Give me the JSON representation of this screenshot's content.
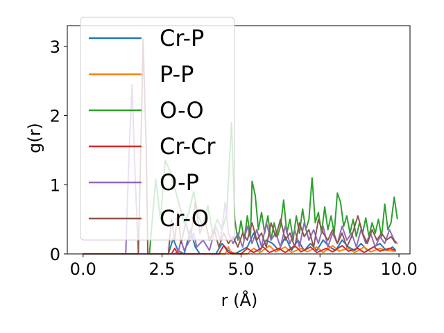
{
  "chart_data": {
    "type": "line",
    "title": "",
    "xlabel": "r (Å)",
    "ylabel": "g(r)",
    "xlim": [
      -0.5,
      10.35
    ],
    "ylim": [
      0,
      3.3
    ],
    "xticks": [
      0.0,
      2.5,
      5.0,
      7.5,
      10.0
    ],
    "xtick_labels": [
      "0.0",
      "2.5",
      "5.0",
      "7.5",
      "10.0"
    ],
    "yticks": [
      0,
      1,
      2,
      3
    ],
    "ytick_labels": [
      "0",
      "1",
      "2",
      "3"
    ],
    "grid": false,
    "legend_position": "top-left",
    "series": [
      {
        "name": "Cr-P",
        "color": "#1f77b4",
        "points": [
          [
            0,
            0
          ],
          [
            2.7,
            0
          ],
          [
            2.85,
            0.22
          ],
          [
            3.0,
            0.05
          ],
          [
            3.2,
            0
          ],
          [
            3.4,
            0.35
          ],
          [
            3.55,
            0.1
          ],
          [
            3.7,
            0
          ],
          [
            4.2,
            0
          ],
          [
            4.4,
            0.15
          ],
          [
            4.6,
            0.05
          ],
          [
            4.8,
            0
          ],
          [
            5.2,
            0.1
          ],
          [
            5.4,
            0.3
          ],
          [
            5.6,
            0.05
          ],
          [
            5.8,
            0.2
          ],
          [
            6.0,
            0.15
          ],
          [
            6.2,
            0.05
          ],
          [
            6.4,
            0.25
          ],
          [
            6.6,
            0.05
          ],
          [
            6.8,
            0.2
          ],
          [
            7.0,
            0.05
          ],
          [
            7.2,
            0.15
          ],
          [
            7.4,
            0.05
          ],
          [
            7.6,
            0.2
          ],
          [
            7.8,
            0.1
          ],
          [
            8.0,
            0.05
          ],
          [
            8.2,
            0.2
          ],
          [
            8.4,
            0.1
          ],
          [
            8.6,
            0.05
          ],
          [
            8.8,
            0.15
          ],
          [
            9.0,
            0.05
          ],
          [
            9.2,
            0.1
          ],
          [
            9.4,
            0.15
          ],
          [
            9.6,
            0.05
          ],
          [
            9.8,
            0.1
          ],
          [
            9.9,
            0.05
          ]
        ]
      },
      {
        "name": "P-P",
        "color": "#ff7f0e",
        "points": [
          [
            0,
            0
          ],
          [
            2.9,
            0
          ],
          [
            3.0,
            0.05
          ],
          [
            3.1,
            0
          ],
          [
            4.5,
            0
          ],
          [
            4.6,
            0.1
          ],
          [
            4.7,
            0
          ],
          [
            5.2,
            0
          ],
          [
            5.4,
            0.08
          ],
          [
            5.6,
            0.02
          ],
          [
            5.9,
            0.12
          ],
          [
            6.1,
            0.03
          ],
          [
            6.4,
            0.1
          ],
          [
            6.6,
            0.02
          ],
          [
            6.9,
            0.08
          ],
          [
            7.1,
            0.03
          ],
          [
            7.4,
            0.1
          ],
          [
            7.6,
            0.02
          ],
          [
            7.9,
            0.12
          ],
          [
            8.1,
            0.04
          ],
          [
            8.4,
            0.08
          ],
          [
            8.6,
            0.02
          ],
          [
            8.9,
            0.1
          ],
          [
            9.1,
            0.03
          ],
          [
            9.4,
            0.08
          ],
          [
            9.6,
            0.05
          ],
          [
            9.9,
            0.04
          ]
        ]
      },
      {
        "name": "O-O",
        "color": "#2ca02c",
        "points": [
          [
            0,
            0
          ],
          [
            2.1,
            0
          ],
          [
            2.3,
            1.08
          ],
          [
            2.45,
            0.5
          ],
          [
            2.6,
            1.35
          ],
          [
            2.75,
            1.2
          ],
          [
            2.9,
            0.95
          ],
          [
            3.05,
            0.7
          ],
          [
            3.2,
            0.45
          ],
          [
            3.35,
            0.6
          ],
          [
            3.5,
            0.9
          ],
          [
            3.65,
            0.55
          ],
          [
            3.8,
            0.4
          ],
          [
            3.95,
            0.7
          ],
          [
            4.1,
            0.3
          ],
          [
            4.25,
            0.5
          ],
          [
            4.4,
            0.35
          ],
          [
            4.55,
            0.6
          ],
          [
            4.7,
            1.9
          ],
          [
            4.8,
            0.5
          ],
          [
            4.9,
            0.2
          ],
          [
            5.0,
            0.48
          ],
          [
            5.1,
            0.2
          ],
          [
            5.2,
            0.55
          ],
          [
            5.3,
            0.25
          ],
          [
            5.35,
            1.05
          ],
          [
            5.45,
            0.85
          ],
          [
            5.55,
            0.35
          ],
          [
            5.65,
            0.6
          ],
          [
            5.75,
            0.3
          ],
          [
            5.85,
            0.55
          ],
          [
            5.95,
            0.2
          ],
          [
            6.05,
            0.45
          ],
          [
            6.15,
            0.25
          ],
          [
            6.25,
            0.4
          ],
          [
            6.35,
            0.78
          ],
          [
            6.45,
            0.3
          ],
          [
            6.55,
            0.5
          ],
          [
            6.65,
            0.2
          ],
          [
            6.75,
            0.55
          ],
          [
            6.85,
            0.3
          ],
          [
            6.95,
            0.65
          ],
          [
            7.05,
            0.35
          ],
          [
            7.15,
            0.5
          ],
          [
            7.25,
            1.1
          ],
          [
            7.35,
            0.45
          ],
          [
            7.45,
            0.6
          ],
          [
            7.55,
            0.3
          ],
          [
            7.65,
            0.68
          ],
          [
            7.75,
            0.35
          ],
          [
            7.85,
            0.55
          ],
          [
            7.95,
            0.3
          ],
          [
            8.05,
            0.88
          ],
          [
            8.15,
            0.75
          ],
          [
            8.25,
            0.4
          ],
          [
            8.35,
            0.55
          ],
          [
            8.45,
            0.3
          ],
          [
            8.55,
            0.5
          ],
          [
            8.65,
            0.25
          ],
          [
            8.75,
            0.45
          ],
          [
            8.85,
            0.3
          ],
          [
            8.95,
            0.52
          ],
          [
            9.05,
            0.25
          ],
          [
            9.15,
            0.45
          ],
          [
            9.25,
            0.3
          ],
          [
            9.35,
            0.5
          ],
          [
            9.45,
            0.25
          ],
          [
            9.55,
            0.72
          ],
          [
            9.65,
            0.35
          ],
          [
            9.75,
            0.45
          ],
          [
            9.85,
            0.82
          ],
          [
            9.95,
            0.5
          ]
        ]
      },
      {
        "name": "Cr-Cr",
        "color": "#d62728",
        "points": [
          [
            0,
            0
          ],
          [
            2.8,
            0
          ],
          [
            2.9,
            0.08
          ],
          [
            3.0,
            0
          ],
          [
            4.3,
            0
          ],
          [
            4.45,
            0.12
          ],
          [
            4.6,
            0.02
          ],
          [
            5.0,
            0
          ],
          [
            5.2,
            0.08
          ],
          [
            5.4,
            0.02
          ],
          [
            5.7,
            0.1
          ],
          [
            5.9,
            0.02
          ],
          [
            6.2,
            0.08
          ],
          [
            6.4,
            0.02
          ],
          [
            6.7,
            0.12
          ],
          [
            6.9,
            0.03
          ],
          [
            7.2,
            0.1
          ],
          [
            7.4,
            0.02
          ],
          [
            7.7,
            0.08
          ],
          [
            7.9,
            0.03
          ],
          [
            8.2,
            0.12
          ],
          [
            8.4,
            0.04
          ],
          [
            8.7,
            0.08
          ],
          [
            8.9,
            0.02
          ],
          [
            9.2,
            0.1
          ],
          [
            9.4,
            0.04
          ],
          [
            9.7,
            0.08
          ],
          [
            9.9,
            0.05
          ]
        ]
      },
      {
        "name": "O-P",
        "color": "#9467bd",
        "points": [
          [
            0,
            0
          ],
          [
            1.35,
            0
          ],
          [
            1.45,
            1.4
          ],
          [
            1.55,
            2.45
          ],
          [
            1.65,
            1.1
          ],
          [
            1.75,
            0
          ],
          [
            3.0,
            0
          ],
          [
            3.1,
            0.2
          ],
          [
            3.2,
            0.05
          ],
          [
            3.5,
            0.3
          ],
          [
            3.6,
            0.1
          ],
          [
            3.8,
            0.2
          ],
          [
            4.0,
            0.05
          ],
          [
            4.2,
            0.4
          ],
          [
            4.35,
            0.2
          ],
          [
            4.5,
            0.75
          ],
          [
            4.6,
            0.3
          ],
          [
            4.75,
            0.15
          ],
          [
            4.9,
            0.3
          ],
          [
            5.05,
            0.1
          ],
          [
            5.2,
            0.4
          ],
          [
            5.35,
            0.15
          ],
          [
            5.5,
            0.35
          ],
          [
            5.65,
            0.1
          ],
          [
            5.8,
            0.45
          ],
          [
            5.95,
            0.2
          ],
          [
            6.1,
            0.3
          ],
          [
            6.25,
            0.1
          ],
          [
            6.4,
            0.4
          ],
          [
            6.55,
            0.15
          ],
          [
            6.7,
            0.35
          ],
          [
            6.85,
            0.1
          ],
          [
            7.0,
            0.45
          ],
          [
            7.15,
            0.2
          ],
          [
            7.3,
            0.35
          ],
          [
            7.45,
            0.15
          ],
          [
            7.6,
            0.4
          ],
          [
            7.75,
            0.1
          ],
          [
            7.9,
            0.3
          ],
          [
            8.05,
            0.15
          ],
          [
            8.2,
            0.4
          ],
          [
            8.35,
            0.2
          ],
          [
            8.5,
            0.3
          ],
          [
            8.65,
            0.1
          ],
          [
            8.8,
            0.35
          ],
          [
            8.95,
            0.15
          ],
          [
            9.1,
            0.3
          ],
          [
            9.25,
            0.1
          ],
          [
            9.4,
            0.25
          ],
          [
            9.55,
            0.15
          ],
          [
            9.7,
            0.35
          ],
          [
            9.85,
            0.2
          ],
          [
            9.95,
            0.15
          ]
        ]
      },
      {
        "name": "Cr-O",
        "color": "#8c564b",
        "points": [
          [
            0,
            0
          ],
          [
            1.75,
            0
          ],
          [
            1.85,
            2.0
          ],
          [
            1.9,
            3.1
          ],
          [
            2.0,
            1.5
          ],
          [
            2.05,
            0
          ],
          [
            2.7,
            0
          ],
          [
            2.8,
            0.5
          ],
          [
            2.9,
            0.2
          ],
          [
            3.0,
            0.6
          ],
          [
            3.1,
            0.15
          ],
          [
            3.25,
            0.45
          ],
          [
            3.4,
            0.2
          ],
          [
            3.55,
            0.75
          ],
          [
            3.7,
            0.3
          ],
          [
            3.85,
            0.5
          ],
          [
            4.0,
            0.2
          ],
          [
            4.15,
            0.35
          ],
          [
            4.3,
            0.1
          ],
          [
            4.45,
            0.3
          ],
          [
            4.6,
            0.15
          ],
          [
            4.75,
            0.25
          ],
          [
            4.9,
            0.1
          ],
          [
            5.05,
            0.3
          ],
          [
            5.2,
            0.2
          ],
          [
            5.35,
            0.45
          ],
          [
            5.5,
            0.2
          ],
          [
            5.65,
            0.3
          ],
          [
            5.8,
            0.1
          ],
          [
            5.95,
            0.45
          ],
          [
            6.1,
            0.25
          ],
          [
            6.25,
            0.5
          ],
          [
            6.4,
            0.2
          ],
          [
            6.55,
            0.3
          ],
          [
            6.7,
            0.1
          ],
          [
            6.85,
            0.45
          ],
          [
            7.0,
            0.25
          ],
          [
            7.15,
            0.35
          ],
          [
            7.3,
            0.1
          ],
          [
            7.45,
            0.5
          ],
          [
            7.6,
            0.3
          ],
          [
            7.75,
            0.2
          ],
          [
            7.9,
            0.35
          ],
          [
            8.05,
            0.15
          ],
          [
            8.2,
            0.3
          ],
          [
            8.35,
            0.1
          ],
          [
            8.5,
            0.25
          ],
          [
            8.7,
            0.55
          ],
          [
            8.85,
            0.3
          ],
          [
            9.0,
            0.15
          ],
          [
            9.15,
            0.35
          ],
          [
            9.3,
            0.2
          ],
          [
            9.45,
            0.3
          ],
          [
            9.6,
            0.2
          ],
          [
            9.75,
            0.25
          ],
          [
            9.9,
            0.15
          ]
        ]
      }
    ]
  }
}
